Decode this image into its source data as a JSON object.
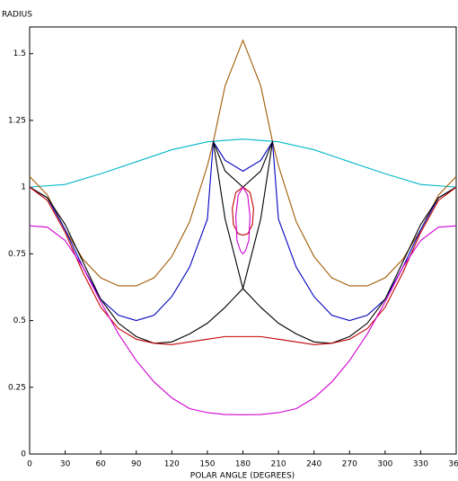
{
  "chart_data": {
    "type": "line",
    "y_label": "RADIUS",
    "x_label": "POLAR ANGLE (DEGREES)",
    "xlim": [
      0,
      360
    ],
    "xticks": [
      0,
      30,
      60,
      90,
      120,
      150,
      180,
      210,
      240,
      270,
      300,
      330,
      360
    ],
    "ylim": [
      0,
      1.6
    ],
    "yticks": [
      0,
      0.25,
      0.5,
      0.75,
      1,
      1.25,
      1.5
    ],
    "series": [
      {
        "color": "#00b8c8",
        "x": [
          0,
          30,
          60,
          90,
          120,
          150,
          180,
          210,
          240,
          270,
          300,
          330,
          360
        ],
        "values": [
          1.0,
          1.01,
          1.05,
          1.095,
          1.14,
          1.17,
          1.18,
          1.17,
          1.14,
          1.095,
          1.05,
          1.01,
          1.0
        ]
      },
      {
        "color": "#a05a00",
        "x": [
          0,
          15,
          30,
          45,
          60,
          75,
          90,
          105,
          120,
          135,
          150,
          155,
          165,
          180,
          195,
          205,
          210,
          225,
          240,
          255,
          270,
          285,
          300,
          315,
          330,
          345,
          360
        ],
        "values": [
          1.04,
          0.97,
          0.84,
          0.73,
          0.66,
          0.63,
          0.63,
          0.66,
          0.74,
          0.87,
          1.08,
          1.17,
          1.38,
          1.55,
          1.38,
          1.17,
          1.08,
          0.87,
          0.74,
          0.66,
          0.63,
          0.63,
          0.66,
          0.73,
          0.84,
          0.97,
          1.04
        ]
      },
      {
        "color": "#0000c0",
        "x": [
          0,
          15,
          30,
          45,
          60,
          75,
          90,
          105,
          120,
          135,
          150,
          155,
          165,
          180,
          195,
          205,
          210,
          225,
          240,
          255,
          270,
          285,
          300,
          315,
          330,
          345,
          360
        ],
        "values": [
          1.0,
          0.96,
          0.84,
          0.7,
          0.58,
          0.52,
          0.5,
          0.52,
          0.59,
          0.7,
          0.88,
          1.17,
          1.1,
          1.06,
          1.1,
          1.17,
          0.88,
          0.7,
          0.59,
          0.52,
          0.5,
          0.52,
          0.58,
          0.7,
          0.84,
          0.96,
          1.0
        ]
      },
      {
        "color": "#000000",
        "x": [
          0,
          15,
          30,
          45,
          60,
          75,
          90,
          105,
          120,
          135,
          150,
          165,
          180,
          195,
          205,
          195,
          180,
          165,
          155,
          165,
          180,
          195,
          210,
          225,
          240,
          255,
          270,
          285,
          300,
          315,
          330,
          345,
          360
        ],
        "values": [
          1.0,
          0.96,
          0.86,
          0.72,
          0.58,
          0.49,
          0.44,
          0.415,
          0.42,
          0.45,
          0.49,
          0.55,
          0.62,
          0.88,
          1.17,
          1.06,
          1.0,
          1.06,
          1.17,
          0.88,
          0.62,
          0.55,
          0.49,
          0.45,
          0.42,
          0.415,
          0.44,
          0.49,
          0.58,
          0.72,
          0.86,
          0.96,
          1.0
        ]
      },
      {
        "color": "#c00000",
        "x": [
          0,
          15,
          30,
          45,
          60,
          75,
          90,
          105,
          120,
          135,
          150,
          165,
          180,
          195,
          210,
          225,
          240,
          255,
          270,
          285,
          300,
          315,
          330,
          345,
          360
        ],
        "values": [
          1.0,
          0.95,
          0.83,
          0.68,
          0.55,
          0.47,
          0.43,
          0.415,
          0.41,
          0.42,
          0.43,
          0.44,
          0.44,
          0.44,
          0.43,
          0.42,
          0.41,
          0.415,
          0.43,
          0.47,
          0.55,
          0.68,
          0.83,
          0.95,
          1.0
        ]
      },
      {
        "color": "#c00000",
        "x": [
          180,
          186,
          189,
          188,
          184,
          180,
          176,
          172,
          171,
          174,
          180
        ],
        "values": [
          1.0,
          0.98,
          0.92,
          0.86,
          0.825,
          0.82,
          0.825,
          0.86,
          0.92,
          0.98,
          1.0
        ]
      },
      {
        "color": "#d000d0",
        "x": [
          0,
          15,
          30,
          45,
          60,
          75,
          90,
          105,
          120,
          135,
          150,
          165,
          180,
          195,
          210,
          225,
          240,
          255,
          270,
          285,
          300,
          315,
          330,
          345,
          360
        ],
        "values": [
          0.855,
          0.85,
          0.8,
          0.7,
          0.57,
          0.45,
          0.35,
          0.27,
          0.21,
          0.17,
          0.155,
          0.148,
          0.147,
          0.148,
          0.155,
          0.17,
          0.21,
          0.27,
          0.35,
          0.45,
          0.57,
          0.7,
          0.8,
          0.85,
          0.855
        ]
      },
      {
        "color": "#d000d0",
        "x": [
          180,
          184,
          186,
          185,
          182,
          180,
          178,
          175,
          174,
          176,
          180
        ],
        "values": [
          1.0,
          0.97,
          0.89,
          0.8,
          0.76,
          0.75,
          0.76,
          0.8,
          0.89,
          0.97,
          1.0
        ]
      }
    ]
  }
}
